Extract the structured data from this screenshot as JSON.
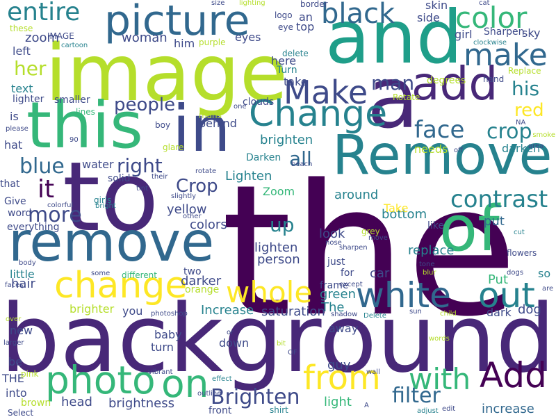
{
  "palette": {
    "dark_purple": "#440154",
    "indigo": "#482878",
    "slate_blue": "#3e4a89",
    "steel_blue": "#31688e",
    "teal": "#26828e",
    "sea_green": "#1f9e89",
    "green": "#35b779",
    "light_green": "#6ece58",
    "yellow_green": "#b5de2b",
    "yellow": "#fde725"
  },
  "words": [
    {
      "text": "the",
      "color": "#440154"
    },
    {
      "text": "background",
      "color": "#482878"
    },
    {
      "text": "to",
      "color": "#482878"
    },
    {
      "text": "image",
      "color": "#b5de2b"
    },
    {
      "text": "and",
      "color": "#1f9e89"
    },
    {
      "text": "a",
      "color": "#482878"
    },
    {
      "text": "Remove",
      "color": "#26828e"
    },
    {
      "text": "remove",
      "color": "#31688e"
    },
    {
      "text": "this",
      "color": "#35b779"
    },
    {
      "text": "in",
      "color": "#3e4a89"
    },
    {
      "text": "of",
      "color": "#35b779"
    },
    {
      "text": "picture",
      "color": "#31688e"
    },
    {
      "text": "add",
      "color": "#482878"
    },
    {
      "text": "Add",
      "color": "#440154"
    },
    {
      "text": "photo",
      "color": "#35b779"
    },
    {
      "text": "on",
      "color": "#35b779"
    },
    {
      "text": "change",
      "color": "#fde725"
    },
    {
      "text": "Change",
      "color": "#26828e"
    },
    {
      "text": "from",
      "color": "#fde725"
    },
    {
      "text": "whole",
      "color": "#fde725"
    },
    {
      "text": "white",
      "color": "#31688e"
    },
    {
      "text": "out",
      "color": "#26828e"
    },
    {
      "text": "Make",
      "color": "#3e4a89"
    },
    {
      "text": "make",
      "color": "#31688e"
    },
    {
      "text": "color",
      "color": "#35b779"
    },
    {
      "text": "black",
      "color": "#31688e"
    },
    {
      "text": "entire",
      "color": "#26828e"
    },
    {
      "text": "it",
      "color": "#440154"
    },
    {
      "text": "with",
      "color": "#35b779"
    },
    {
      "text": "contrast",
      "color": "#26828e"
    },
    {
      "text": "face",
      "color": "#31688e"
    },
    {
      "text": "crop",
      "color": "#26828e"
    },
    {
      "text": "blue",
      "color": "#31688e"
    },
    {
      "text": "more",
      "color": "#3e4a89"
    },
    {
      "text": "right",
      "color": "#3e4a89"
    },
    {
      "text": "people",
      "color": "#3e4a89"
    },
    {
      "text": "filter",
      "color": "#31688e"
    },
    {
      "text": "Brighten",
      "color": "#3e4a89"
    },
    {
      "text": "her",
      "color": "#b5de2b"
    },
    {
      "text": "his",
      "color": "#26828e"
    },
    {
      "text": "red",
      "color": "#fde725"
    },
    {
      "text": "man",
      "color": "#3e4a89"
    },
    {
      "text": "up",
      "color": "#26828e"
    },
    {
      "text": "all",
      "color": "#31688e"
    },
    {
      "text": "Crop",
      "color": "#3e4a89"
    },
    {
      "text": "brighten",
      "color": "#26828e"
    },
    {
      "text": "brightness",
      "color": "#3e4a89"
    },
    {
      "text": "head",
      "color": "#3e4a89"
    },
    {
      "text": "hair",
      "color": "#3e4a89"
    },
    {
      "text": "Put",
      "color": "#35b779"
    },
    {
      "text": "put",
      "color": "#31688e"
    },
    {
      "text": "look",
      "color": "#3e4a89"
    },
    {
      "text": "replace",
      "color": "#26828e"
    },
    {
      "text": "around",
      "color": "#26828e"
    },
    {
      "text": "bottom",
      "color": "#26828e"
    },
    {
      "text": "yellow",
      "color": "#3e4a89"
    },
    {
      "text": "Lighten",
      "color": "#26828e"
    },
    {
      "text": "lighten",
      "color": "#3e4a89"
    },
    {
      "text": "person",
      "color": "#3e4a89"
    },
    {
      "text": "darker",
      "color": "#3e4a89"
    },
    {
      "text": "colors",
      "color": "#3e4a89"
    },
    {
      "text": "zoom",
      "color": "#3e4a89"
    },
    {
      "text": "woman",
      "color": "#3e4a89"
    },
    {
      "text": "Increase",
      "color": "#26828e"
    },
    {
      "text": "saturation",
      "color": "#3e4a89"
    },
    {
      "text": "dog",
      "color": "#3e4a89"
    },
    {
      "text": "car",
      "color": "#3e4a89"
    },
    {
      "text": "green",
      "color": "#26828e"
    },
    {
      "text": "The",
      "color": "#26828e"
    },
    {
      "text": "guy",
      "color": "#3e4a89"
    },
    {
      "text": "light",
      "color": "#35b779"
    },
    {
      "text": "increase",
      "color": "#31688e"
    },
    {
      "text": "skin",
      "color": "#3e4a89"
    },
    {
      "text": "girl",
      "color": "#3e4a89"
    },
    {
      "text": "darken",
      "color": "#26828e"
    },
    {
      "text": "eyes",
      "color": "#3e4a89"
    },
    {
      "text": "here",
      "color": "#3e4a89"
    },
    {
      "text": "take",
      "color": "#3e4a89"
    },
    {
      "text": "needs",
      "color": "#b5de2b"
    },
    {
      "text": "Take",
      "color": "#fde725"
    },
    {
      "text": "Zoom",
      "color": "#35b779"
    },
    {
      "text": "text",
      "color": "#26828e"
    },
    {
      "text": "left",
      "color": "#3e4a89"
    },
    {
      "text": "is",
      "color": "#3e4a89"
    },
    {
      "text": "hat",
      "color": "#3e4a89"
    },
    {
      "text": "blur",
      "color": "#b5de2b"
    },
    {
      "text": "sky",
      "color": "#3e4a89"
    },
    {
      "text": "top",
      "color": "#3e4a89"
    },
    {
      "text": "an",
      "color": "#3e4a89"
    },
    {
      "text": "side",
      "color": "#3e4a89"
    },
    {
      "text": "so",
      "color": "#26828e"
    },
    {
      "text": "away",
      "color": "#3e4a89"
    },
    {
      "text": "you",
      "color": "#3e4a89"
    },
    {
      "text": "baby",
      "color": "#3e4a89"
    },
    {
      "text": "turn",
      "color": "#3e4a89"
    },
    {
      "text": "down",
      "color": "#3e4a89"
    },
    {
      "text": "frame",
      "color": "#3e4a89"
    },
    {
      "text": "like",
      "color": "#3e4a89"
    },
    {
      "text": "dark",
      "color": "#3e4a89"
    },
    {
      "text": "water",
      "color": "#3e4a89"
    },
    {
      "text": "solid",
      "color": "#3e4a89"
    },
    {
      "text": "behind",
      "color": "#3e4a89"
    },
    {
      "text": "him",
      "color": "#3e4a89"
    },
    {
      "text": "little",
      "color": "#26828e"
    },
    {
      "text": "everything",
      "color": "#3e4a89"
    },
    {
      "text": "that",
      "color": "#3e4a89"
    },
    {
      "text": "Give",
      "color": "#3e4a89"
    },
    {
      "text": "word",
      "color": "#3e4a89"
    },
    {
      "text": "new",
      "color": "#3e4a89"
    },
    {
      "text": "be",
      "color": "#3e4a89"
    },
    {
      "text": "THE",
      "color": "#3e4a89"
    },
    {
      "text": "into",
      "color": "#3e4a89"
    },
    {
      "text": "brown",
      "color": "#b5de2b"
    },
    {
      "text": "Select",
      "color": "#3e4a89"
    },
    {
      "text": "pink",
      "color": "#b5de2b"
    },
    {
      "text": "lighter",
      "color": "#3e4a89"
    },
    {
      "text": "smaller",
      "color": "#3e4a89"
    },
    {
      "text": "boy",
      "color": "#3e4a89"
    },
    {
      "text": "glare",
      "color": "#b5de2b"
    },
    {
      "text": "lines",
      "color": "#35b779"
    },
    {
      "text": "mans",
      "color": "#b5de2b"
    },
    {
      "text": "Darken",
      "color": "#26828e"
    },
    {
      "text": "girls",
      "color": "#26828e"
    },
    {
      "text": "slightly",
      "color": "#3e4a89"
    },
    {
      "text": "two",
      "color": "#3e4a89"
    },
    {
      "text": "orange",
      "color": "#b5de2b"
    },
    {
      "text": "brighter",
      "color": "#b5de2b"
    },
    {
      "text": "different",
      "color": "#35b779"
    },
    {
      "text": "some",
      "color": "#3e4a89"
    },
    {
      "text": "front",
      "color": "#3e4a89"
    },
    {
      "text": "shirt",
      "color": "#26828e"
    },
    {
      "text": "border",
      "color": "#3e4a89"
    },
    {
      "text": "logo",
      "color": "#3e4a89"
    },
    {
      "text": "eye",
      "color": "#3e4a89"
    },
    {
      "text": "Turn",
      "color": "#26828e"
    },
    {
      "text": "delete",
      "color": "#26828e"
    },
    {
      "text": "purple",
      "color": "#b5de2b"
    },
    {
      "text": "IMAGE",
      "color": "#3e4a89"
    },
    {
      "text": "degrees",
      "color": "#b5de2b"
    },
    {
      "text": "hand",
      "color": "#3e4a89"
    },
    {
      "text": "Replace",
      "color": "#b5de2b"
    },
    {
      "text": "Sharpen",
      "color": "#3e4a89"
    },
    {
      "text": "clockwise",
      "color": "#26828e"
    },
    {
      "text": "clouds",
      "color": "#3e4a89"
    },
    {
      "text": "Rotate",
      "color": "#b5de2b"
    },
    {
      "text": "rotate",
      "color": "#3e4a89"
    },
    {
      "text": "sharpen",
      "color": "#3e4a89"
    },
    {
      "text": "just",
      "color": "#3e4a89"
    },
    {
      "text": "for",
      "color": "#3e4a89"
    },
    {
      "text": "grey",
      "color": "#b5de2b"
    },
    {
      "text": "these",
      "color": "#b5de2b"
    },
    {
      "text": "cartoon",
      "color": "#26828e"
    },
    {
      "text": "please",
      "color": "#3e4a89"
    },
    {
      "text": "size",
      "color": "#3e4a89"
    },
    {
      "text": "lighting",
      "color": "#b5de2b"
    },
    {
      "text": "cat",
      "color": "#3e4a89"
    },
    {
      "text": "NA",
      "color": "#3e4a89"
    },
    {
      "text": "smoke",
      "color": "#b5de2b"
    },
    {
      "text": "area",
      "color": "#3e4a89"
    },
    {
      "text": "off",
      "color": "#3e4a89"
    },
    {
      "text": "beach",
      "color": "#3e4a89"
    },
    {
      "text": "their",
      "color": "#3e4a89"
    },
    {
      "text": "tint",
      "color": "#3e4a89"
    },
    {
      "text": "bright",
      "color": "#26828e"
    },
    {
      "text": "colorful",
      "color": "#3e4a89"
    },
    {
      "text": "other",
      "color": "#3e4a89"
    },
    {
      "text": "one",
      "color": "#3e4a89"
    },
    {
      "text": "90",
      "color": "#3e4a89"
    },
    {
      "text": "body",
      "color": "#3e4a89"
    },
    {
      "text": "faces",
      "color": "#3e4a89"
    },
    {
      "text": "over",
      "color": "#b5de2b"
    },
    {
      "text": "larger",
      "color": "#3e4a89"
    },
    {
      "text": "photoshop",
      "color": "#3e4a89"
    },
    {
      "text": "shadow",
      "color": "#3e4a89"
    },
    {
      "text": "Delete",
      "color": "#26828e"
    },
    {
      "text": "except",
      "color": "#3e4a89"
    },
    {
      "text": "sun",
      "color": "#3e4a89"
    },
    {
      "text": "child",
      "color": "#b5de2b"
    },
    {
      "text": "nose",
      "color": "#3e4a89"
    },
    {
      "text": "move",
      "color": "#3e4a89"
    },
    {
      "text": "tone",
      "color": "#3e4a89"
    },
    {
      "text": "cut",
      "color": "#26828e"
    },
    {
      "text": "dogs",
      "color": "#3e4a89"
    },
    {
      "text": "are",
      "color": "#3e4a89"
    },
    {
      "text": "or",
      "color": "#3e4a89"
    },
    {
      "text": "bit",
      "color": "#b5de2b"
    },
    {
      "text": "OF",
      "color": "#3e4a89"
    },
    {
      "text": "words",
      "color": "#b5de2b"
    },
    {
      "text": "wall",
      "color": "#3e4a89"
    },
    {
      "text": "effect",
      "color": "#26828e"
    },
    {
      "text": "vibrant",
      "color": "#3e4a89"
    },
    {
      "text": "outline",
      "color": "#3e4a89"
    },
    {
      "text": "A",
      "color": "#3e4a89"
    },
    {
      "text": "adjust",
      "color": "#26828e"
    },
    {
      "text": "edit",
      "color": "#3e4a89"
    },
    {
      "text": "flowers",
      "color": "#3e4a89"
    },
    {
      "text": "I",
      "color": "#3e4a89"
    }
  ]
}
